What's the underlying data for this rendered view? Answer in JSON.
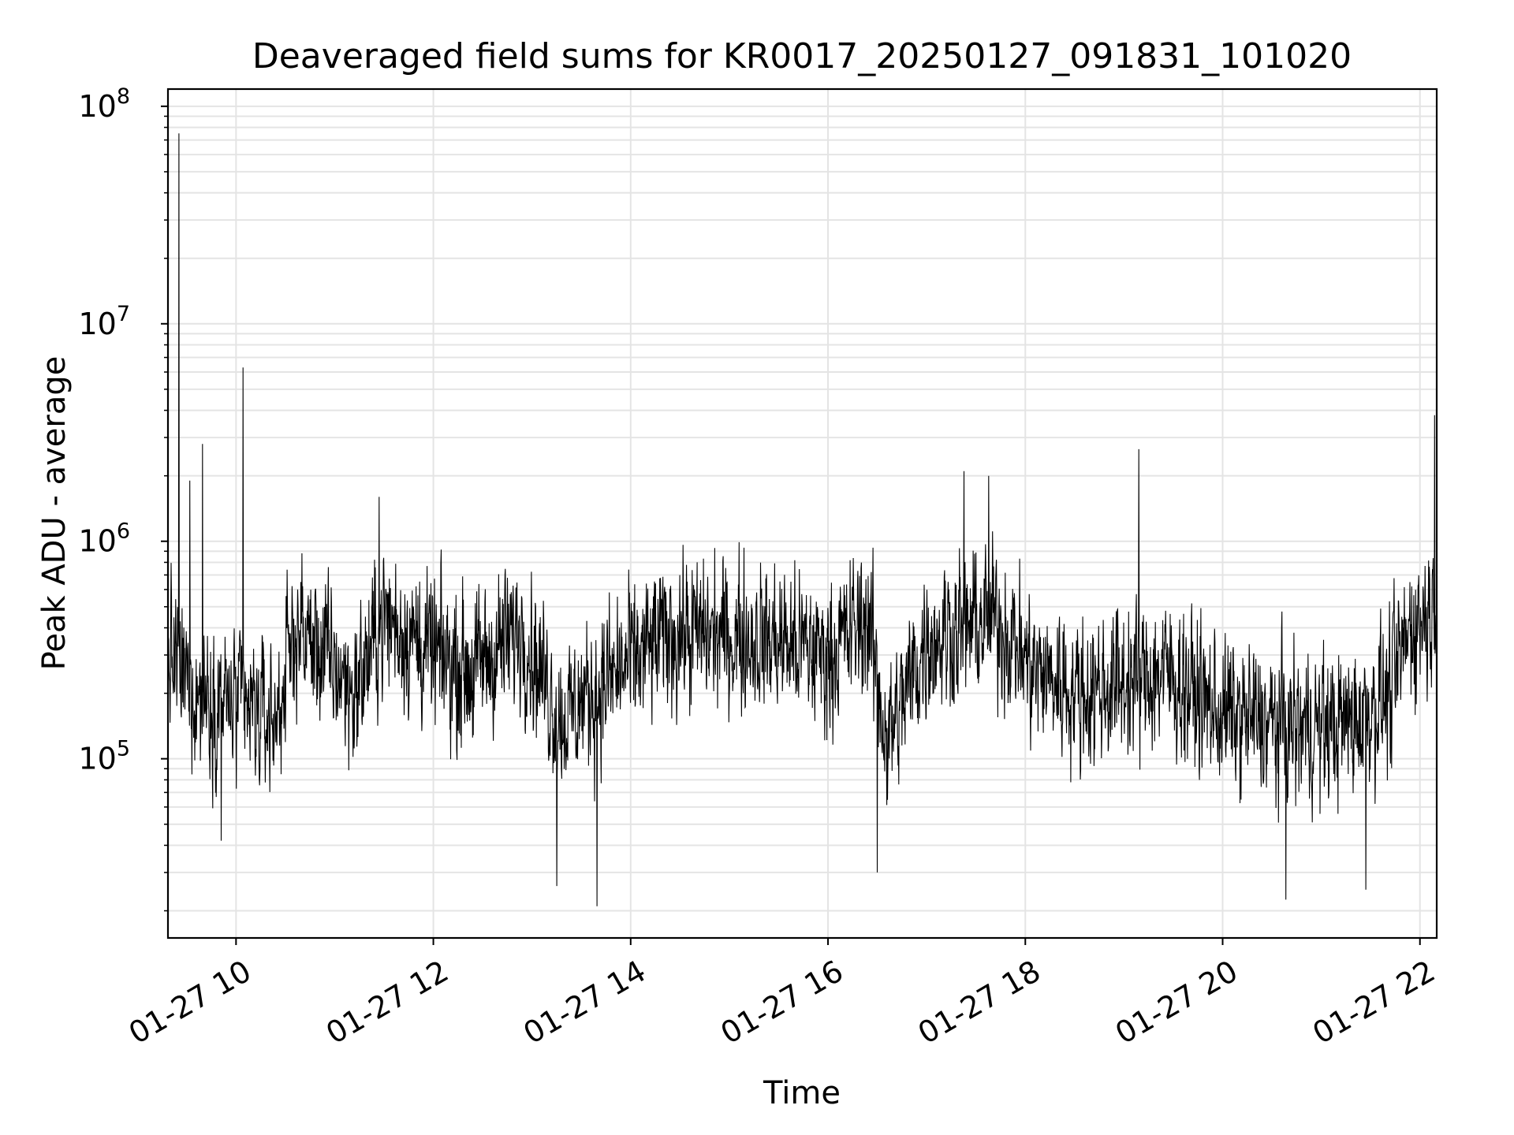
{
  "chart_data": {
    "type": "line",
    "title": "Deaveraged field sums for KR0017_20250127_091831_101020",
    "xlabel": "Time",
    "ylabel": "Peak ADU - average",
    "yscale": "log",
    "ylim": [
      15000,
      120000000
    ],
    "xlim_hours": [
      9.31,
      22.17
    ],
    "grid": true,
    "line_color": "#000000",
    "x_ticks": [
      {
        "value": 10,
        "label": "01-27 10"
      },
      {
        "value": 12,
        "label": "01-27 12"
      },
      {
        "value": 14,
        "label": "01-27 14"
      },
      {
        "value": 16,
        "label": "01-27 16"
      },
      {
        "value": 18,
        "label": "01-27 18"
      },
      {
        "value": 20,
        "label": "01-27 20"
      },
      {
        "value": 22,
        "label": "01-27 22"
      }
    ],
    "y_ticks": [
      {
        "value": 100000,
        "base": "10",
        "exp": "5"
      },
      {
        "value": 1000000,
        "base": "10",
        "exp": "6"
      },
      {
        "value": 10000000,
        "base": "10",
        "exp": "7"
      },
      {
        "value": 100000000,
        "base": "10",
        "exp": "8"
      }
    ],
    "series": [
      {
        "name": "Peak ADU - average",
        "baseline_profile": [
          {
            "x": 9.31,
            "y": 300000
          },
          {
            "x": 9.6,
            "y": 200000
          },
          {
            "x": 10.4,
            "y": 150000
          },
          {
            "x": 10.6,
            "y": 400000
          },
          {
            "x": 10.9,
            "y": 300000
          },
          {
            "x": 11.2,
            "y": 200000
          },
          {
            "x": 11.5,
            "y": 450000
          },
          {
            "x": 12.0,
            "y": 300000
          },
          {
            "x": 12.4,
            "y": 250000
          },
          {
            "x": 12.9,
            "y": 400000
          },
          {
            "x": 13.3,
            "y": 150000
          },
          {
            "x": 13.6,
            "y": 200000
          },
          {
            "x": 14.4,
            "y": 380000
          },
          {
            "x": 15.5,
            "y": 350000
          },
          {
            "x": 16.0,
            "y": 300000
          },
          {
            "x": 16.4,
            "y": 450000
          },
          {
            "x": 16.6,
            "y": 120000
          },
          {
            "x": 17.0,
            "y": 350000
          },
          {
            "x": 17.7,
            "y": 450000
          },
          {
            "x": 18.1,
            "y": 250000
          },
          {
            "x": 18.6,
            "y": 200000
          },
          {
            "x": 19.4,
            "y": 250000
          },
          {
            "x": 20.0,
            "y": 160000
          },
          {
            "x": 20.6,
            "y": 140000
          },
          {
            "x": 21.2,
            "y": 140000
          },
          {
            "x": 21.7,
            "y": 200000
          },
          {
            "x": 21.9,
            "y": 400000
          },
          {
            "x": 22.17,
            "y": 500000
          }
        ],
        "spikes": [
          {
            "x": 9.42,
            "y": 75000000
          },
          {
            "x": 9.53,
            "y": 1900000
          },
          {
            "x": 9.66,
            "y": 2800000
          },
          {
            "x": 10.07,
            "y": 6300000
          },
          {
            "x": 11.45,
            "y": 1600000
          },
          {
            "x": 17.38,
            "y": 2100000
          },
          {
            "x": 17.63,
            "y": 2000000
          },
          {
            "x": 19.15,
            "y": 2650000
          },
          {
            "x": 22.15,
            "y": 3800000
          }
        ],
        "dips": [
          {
            "x": 9.85,
            "y": 42000
          },
          {
            "x": 13.25,
            "y": 26000
          },
          {
            "x": 13.66,
            "y": 21000
          },
          {
            "x": 16.5,
            "y": 30000
          },
          {
            "x": 20.64,
            "y": 22500
          },
          {
            "x": 21.45,
            "y": 25000
          }
        ]
      }
    ]
  }
}
